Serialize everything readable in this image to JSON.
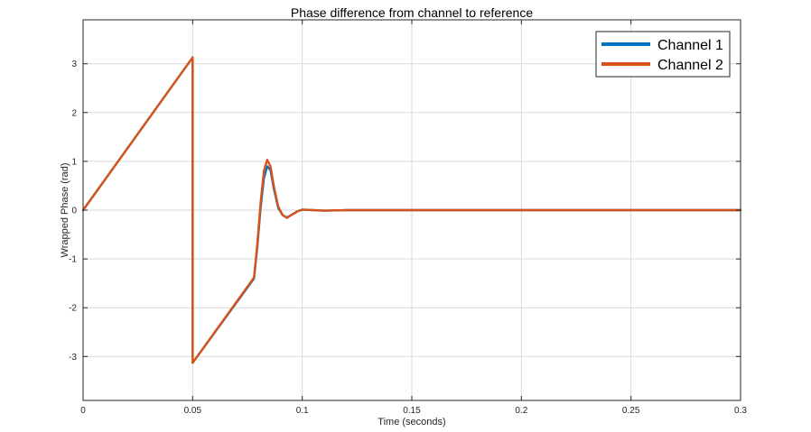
{
  "colors": {
    "background": "#ffffff",
    "axes": "#262626",
    "grid": "#dadada",
    "channel_1": "#0072bd",
    "channel_2": "#d95319"
  },
  "chart_data": {
    "type": "line",
    "title": "Phase difference from channel to reference",
    "xlabel": "Time (seconds)",
    "ylabel": "Wrapped Phase (rad)",
    "xlim": [
      0,
      0.3
    ],
    "ylim": [
      -3.9,
      3.9
    ],
    "xticks": [
      0,
      0.05,
      0.1,
      0.15,
      0.2,
      0.25,
      0.3
    ],
    "xtick_labels": [
      "0",
      "0.05",
      "0.1",
      "0.15",
      "0.2",
      "0.25",
      "0.3"
    ],
    "yticks": [
      -3,
      -2,
      -1,
      0,
      1,
      2,
      3
    ],
    "ytick_labels": [
      "-3",
      "-2",
      "-1",
      "0",
      "1",
      "2",
      "3"
    ],
    "grid": true,
    "legend_position": "top-right",
    "series": [
      {
        "name": "Channel 1",
        "color": "#0072bd",
        "x": [
          0,
          0.05,
          0.05,
          0.078,
          0.0795,
          0.081,
          0.0825,
          0.084,
          0.0855,
          0.087,
          0.089,
          0.091,
          0.093,
          0.095,
          0.098,
          0.1,
          0.105,
          0.11,
          0.12,
          0.15,
          0.2,
          0.25,
          0.3
        ],
        "y": [
          0,
          3.13,
          -3.13,
          -1.4,
          -0.75,
          0.05,
          0.65,
          0.9,
          0.82,
          0.45,
          0.05,
          -0.1,
          -0.15,
          -0.1,
          -0.02,
          0.01,
          0.0,
          -0.01,
          0.0,
          0.0,
          0.0,
          0.0,
          0.0
        ]
      },
      {
        "name": "Channel 2",
        "color": "#d95319",
        "x": [
          0,
          0.05,
          0.05,
          0.078,
          0.0795,
          0.081,
          0.0825,
          0.084,
          0.0855,
          0.087,
          0.089,
          0.091,
          0.093,
          0.095,
          0.098,
          0.1,
          0.105,
          0.11,
          0.12,
          0.15,
          0.2,
          0.25,
          0.3
        ],
        "y": [
          0,
          3.13,
          -3.13,
          -1.38,
          -0.7,
          0.15,
          0.8,
          1.03,
          0.9,
          0.5,
          0.08,
          -0.1,
          -0.16,
          -0.1,
          -0.02,
          0.01,
          0.0,
          -0.01,
          0.0,
          0.0,
          0.0,
          0.0,
          0.0
        ]
      }
    ]
  }
}
